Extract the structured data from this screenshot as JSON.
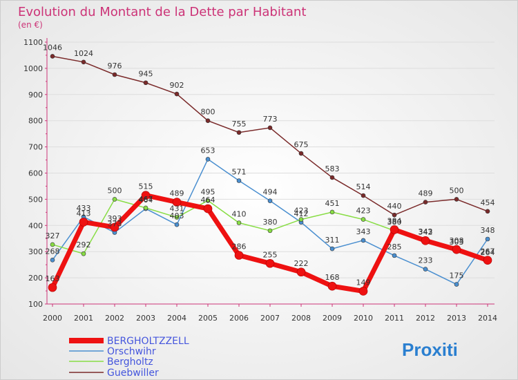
{
  "chart_data": {
    "type": "line",
    "title": "Evolution du Montant de la Dette par Habitant",
    "subtitle": "(en €)",
    "x": [
      "2000",
      "2001",
      "2002",
      "2003",
      "2004",
      "2005",
      "2006",
      "2007",
      "2008",
      "2009",
      "2010",
      "2011",
      "2012",
      "2013",
      "2014"
    ],
    "yticks": [
      100,
      200,
      300,
      400,
      500,
      600,
      700,
      800,
      900,
      1000,
      1100
    ],
    "ylim": [
      100,
      1100
    ],
    "series": [
      {
        "name": "Guebwiller",
        "color": "#7a2a2a",
        "width": 1.5,
        "values": [
          1046,
          1024,
          976,
          945,
          902,
          800,
          755,
          773,
          675,
          583,
          514,
          440,
          489,
          500,
          454
        ]
      },
      {
        "name": "Orschwihr",
        "color": "#4a8fd0",
        "width": 1.5,
        "values": [
          268,
          433,
          373,
          464,
          403,
          653,
          571,
          494,
          412,
          311,
          343,
          285,
          233,
          175,
          348
        ]
      },
      {
        "name": "Bergholtz",
        "color": "#88dd44",
        "width": 1.5,
        "values": [
          327,
          292,
          500,
          467,
          431,
          495,
          410,
          380,
          423,
          451,
          423,
          380,
          343,
          303,
          264
        ]
      },
      {
        "name": "BERGHOLTZZELL",
        "color": "#ee1111",
        "width": 7,
        "values": [
          163,
          413,
          393,
          515,
          489,
          464,
          286,
          255,
          222,
          168,
          149,
          384,
          342,
          308,
          267
        ]
      }
    ],
    "legend": [
      "BERGHOLTZZELL",
      "Orschwihr",
      "Bergholtz",
      "Guebwiller"
    ]
  },
  "logo": "Proxiti"
}
